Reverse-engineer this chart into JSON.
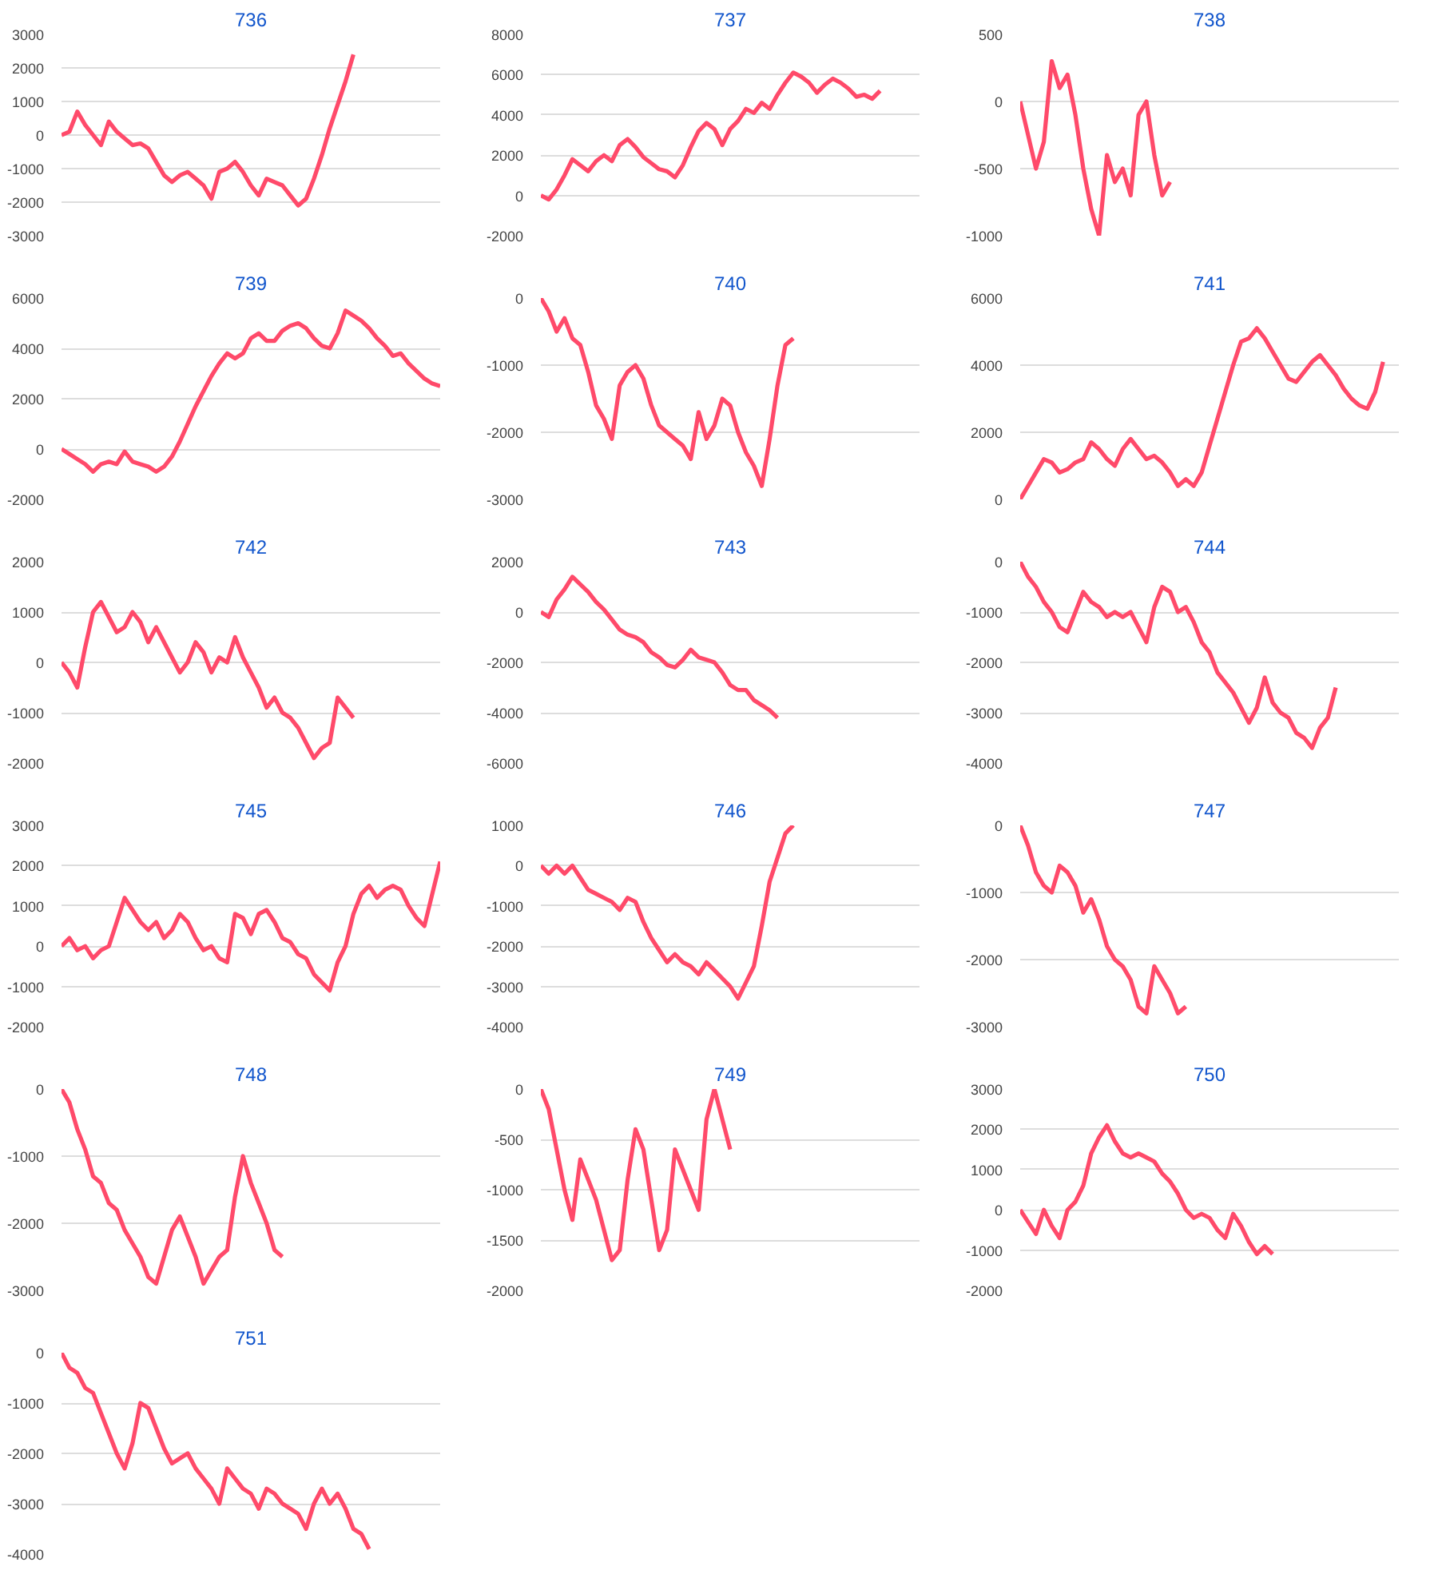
{
  "chart_data": [
    {
      "type": "line",
      "title": "736",
      "categories": [
        null,
        null,
        null,
        null,
        null,
        null,
        null,
        null,
        null,
        null,
        null,
        null,
        null,
        null,
        null,
        null,
        null,
        null,
        null,
        null,
        null,
        null,
        null,
        null,
        null,
        null,
        null,
        null,
        null,
        null,
        null,
        null,
        null,
        null,
        null,
        null,
        null,
        null,
        null,
        null,
        null,
        null,
        null,
        null,
        null,
        null,
        null,
        null,
        null
      ],
      "series": [
        {
          "color": "#ff4a6a",
          "values": [
            0,
            100,
            700,
            300,
            0,
            -300,
            400,
            100,
            -100,
            -300,
            -250,
            -400,
            -800,
            -1200,
            -1400,
            -1200,
            -1100,
            -1300,
            -1500,
            -1900,
            -1100,
            -1000,
            -800,
            -1100,
            -1500,
            -1800,
            -1300,
            -1400,
            -1500,
            -1800,
            -2100,
            -1900,
            -1300,
            -600,
            200,
            900,
            1600,
            2400,
            null,
            null,
            null,
            null,
            null,
            null,
            null,
            null,
            null,
            null,
            null
          ]
        }
      ],
      "ylim": [
        -3000,
        3000
      ],
      "yticks": [
        -3000,
        -2000,
        -1000,
        0,
        1000,
        2000,
        3000
      ],
      "grid": "y",
      "tick_labels": "y",
      "marker": "none",
      "line_style": "solid"
    },
    {
      "type": "line",
      "title": "737",
      "categories": [
        null,
        null,
        null,
        null,
        null,
        null,
        null,
        null,
        null,
        null,
        null,
        null,
        null,
        null,
        null,
        null,
        null,
        null,
        null,
        null,
        null,
        null,
        null,
        null,
        null,
        null,
        null,
        null,
        null,
        null,
        null,
        null,
        null,
        null,
        null,
        null,
        null,
        null,
        null,
        null,
        null,
        null,
        null,
        null,
        null,
        null,
        null,
        null,
        null
      ],
      "series": [
        {
          "color": "#ff4a6a",
          "values": [
            0,
            -200,
            300,
            1000,
            1800,
            1500,
            1200,
            1700,
            2000,
            1700,
            2500,
            2800,
            2400,
            1900,
            1600,
            1300,
            1200,
            900,
            1500,
            2400,
            3200,
            3600,
            3300,
            2500,
            3300,
            3700,
            4300,
            4100,
            4600,
            4300,
            5000,
            5600,
            6100,
            5900,
            5600,
            5100,
            5500,
            5800,
            5600,
            5300,
            4900,
            5000,
            4800,
            5200,
            null,
            null,
            null,
            null,
            null
          ]
        }
      ],
      "ylim": [
        -2000,
        8000
      ],
      "yticks": [
        -2000,
        0,
        2000,
        4000,
        6000,
        8000
      ],
      "grid": "y",
      "tick_labels": "y",
      "marker": "none",
      "line_style": "solid"
    },
    {
      "type": "line",
      "title": "738",
      "categories": [
        null,
        null,
        null,
        null,
        null,
        null,
        null,
        null,
        null,
        null,
        null,
        null,
        null,
        null,
        null,
        null,
        null,
        null,
        null,
        null,
        null,
        null,
        null,
        null,
        null,
        null,
        null,
        null,
        null,
        null,
        null,
        null,
        null,
        null,
        null,
        null,
        null,
        null,
        null,
        null,
        null,
        null,
        null,
        null,
        null,
        null,
        null,
        null,
        null
      ],
      "series": [
        {
          "color": "#ff4a6a",
          "values": [
            0,
            -250,
            -500,
            -300,
            300,
            100,
            200,
            -100,
            -500,
            -800,
            -1000,
            -400,
            -600,
            -500,
            -700,
            -100,
            0,
            -400,
            -700,
            -600,
            null,
            null,
            null,
            null,
            null,
            null,
            null,
            null,
            null,
            null,
            null,
            null,
            null,
            null,
            null,
            null,
            null,
            null,
            null,
            null,
            null,
            null,
            null,
            null,
            null,
            null,
            null,
            null,
            null
          ]
        }
      ],
      "ylim": [
        -1000,
        500
      ],
      "yticks": [
        -1000,
        -500,
        0,
        500
      ],
      "grid": "y",
      "tick_labels": "y",
      "marker": "none",
      "line_style": "solid"
    },
    {
      "type": "line",
      "title": "739",
      "categories": [
        null,
        null,
        null,
        null,
        null,
        null,
        null,
        null,
        null,
        null,
        null,
        null,
        null,
        null,
        null,
        null,
        null,
        null,
        null,
        null,
        null,
        null,
        null,
        null,
        null,
        null,
        null,
        null,
        null,
        null,
        null,
        null,
        null,
        null,
        null,
        null,
        null,
        null,
        null,
        null,
        null,
        null,
        null,
        null,
        null,
        null,
        null,
        null,
        null
      ],
      "series": [
        {
          "color": "#ff4a6a",
          "values": [
            0,
            -200,
            -400,
            -600,
            -900,
            -600,
            -500,
            -600,
            -100,
            -500,
            -600,
            -700,
            -900,
            -700,
            -300,
            300,
            1000,
            1700,
            2300,
            2900,
            3400,
            3800,
            3600,
            3800,
            4400,
            4600,
            4300,
            4300,
            4700,
            4900,
            5000,
            4800,
            4400,
            4100,
            4000,
            4600,
            5500,
            5300,
            5100,
            4800,
            4400,
            4100,
            3700,
            3800,
            3400,
            3100,
            2800,
            2600,
            2500
          ]
        }
      ],
      "ylim": [
        -2000,
        6000
      ],
      "yticks": [
        -2000,
        0,
        2000,
        4000,
        6000
      ],
      "grid": "y",
      "tick_labels": "y",
      "marker": "none",
      "line_style": "solid"
    },
    {
      "type": "line",
      "title": "740",
      "categories": [
        null,
        null,
        null,
        null,
        null,
        null,
        null,
        null,
        null,
        null,
        null,
        null,
        null,
        null,
        null,
        null,
        null,
        null,
        null,
        null,
        null,
        null,
        null,
        null,
        null,
        null,
        null,
        null,
        null,
        null,
        null,
        null,
        null,
        null,
        null,
        null,
        null,
        null,
        null,
        null,
        null,
        null,
        null,
        null,
        null,
        null,
        null,
        null,
        null
      ],
      "series": [
        {
          "color": "#ff4a6a",
          "values": [
            0,
            -200,
            -500,
            -300,
            -600,
            -700,
            -1100,
            -1600,
            -1800,
            -2100,
            -1300,
            -1100,
            -1000,
            -1200,
            -1600,
            -1900,
            -2000,
            -2100,
            -2200,
            -2400,
            -1700,
            -2100,
            -1900,
            -1500,
            -1600,
            -2000,
            -2300,
            -2500,
            -2800,
            -2100,
            -1300,
            -700,
            -600,
            null,
            null,
            null,
            null,
            null,
            null,
            null,
            null,
            null,
            null,
            null,
            null,
            null,
            null,
            null,
            null
          ]
        }
      ],
      "ylim": [
        -3000,
        0
      ],
      "yticks": [
        -3000,
        -2000,
        -1000,
        0
      ],
      "grid": "y",
      "tick_labels": "y",
      "marker": "none",
      "line_style": "solid"
    },
    {
      "type": "line",
      "title": "741",
      "categories": [
        null,
        null,
        null,
        null,
        null,
        null,
        null,
        null,
        null,
        null,
        null,
        null,
        null,
        null,
        null,
        null,
        null,
        null,
        null,
        null,
        null,
        null,
        null,
        null,
        null,
        null,
        null,
        null,
        null,
        null,
        null,
        null,
        null,
        null,
        null,
        null,
        null,
        null,
        null,
        null,
        null,
        null,
        null,
        null,
        null,
        null,
        null,
        null,
        null
      ],
      "series": [
        {
          "color": "#ff4a6a",
          "values": [
            0,
            400,
            800,
            1200,
            1100,
            800,
            900,
            1100,
            1200,
            1700,
            1500,
            1200,
            1000,
            1500,
            1800,
            1500,
            1200,
            1300,
            1100,
            800,
            400,
            600,
            400,
            800,
            1600,
            2400,
            3200,
            4000,
            4700,
            4800,
            5100,
            4800,
            4400,
            4000,
            3600,
            3500,
            3800,
            4100,
            4300,
            4000,
            3700,
            3300,
            3000,
            2800,
            2700,
            3200,
            4100,
            null,
            null
          ]
        }
      ],
      "ylim": [
        0,
        6000
      ],
      "yticks": [
        0,
        2000,
        4000,
        6000
      ],
      "grid": "y",
      "tick_labels": "y",
      "marker": "none",
      "line_style": "solid"
    },
    {
      "type": "line",
      "title": "742",
      "categories": [
        null,
        null,
        null,
        null,
        null,
        null,
        null,
        null,
        null,
        null,
        null,
        null,
        null,
        null,
        null,
        null,
        null,
        null,
        null,
        null,
        null,
        null,
        null,
        null,
        null,
        null,
        null,
        null,
        null,
        null,
        null,
        null,
        null,
        null,
        null,
        null,
        null,
        null,
        null,
        null,
        null,
        null,
        null,
        null,
        null,
        null,
        null,
        null,
        null
      ],
      "series": [
        {
          "color": "#ff4a6a",
          "values": [
            0,
            -200,
            -500,
            300,
            1000,
            1200,
            900,
            600,
            700,
            1000,
            800,
            400,
            700,
            400,
            100,
            -200,
            0,
            400,
            200,
            -200,
            100,
            0,
            500,
            100,
            -200,
            -500,
            -900,
            -700,
            -1000,
            -1100,
            -1300,
            -1600,
            -1900,
            -1700,
            -1600,
            -700,
            -900,
            -1100,
            null,
            null,
            null,
            null,
            null,
            null,
            null,
            null,
            null,
            null,
            null
          ]
        }
      ],
      "ylim": [
        -2000,
        2000
      ],
      "yticks": [
        -2000,
        -1000,
        0,
        1000,
        2000
      ],
      "grid": "y",
      "tick_labels": "y",
      "marker": "none",
      "line_style": "solid"
    },
    {
      "type": "line",
      "title": "743",
      "categories": [
        null,
        null,
        null,
        null,
        null,
        null,
        null,
        null,
        null,
        null,
        null,
        null,
        null,
        null,
        null,
        null,
        null,
        null,
        null,
        null,
        null,
        null,
        null,
        null,
        null,
        null,
        null,
        null,
        null,
        null,
        null,
        null,
        null,
        null,
        null,
        null,
        null,
        null,
        null,
        null,
        null,
        null,
        null,
        null,
        null,
        null,
        null,
        null,
        null
      ],
      "series": [
        {
          "color": "#ff4a6a",
          "values": [
            0,
            -200,
            500,
            900,
            1400,
            1100,
            800,
            400,
            100,
            -300,
            -700,
            -900,
            -1000,
            -1200,
            -1600,
            -1800,
            -2100,
            -2200,
            -1900,
            -1500,
            -1800,
            -1900,
            -2000,
            -2400,
            -2900,
            -3100,
            -3100,
            -3500,
            -3700,
            -3900,
            -4200,
            null,
            null,
            null,
            null,
            null,
            null,
            null,
            null,
            null,
            null,
            null,
            null,
            null,
            null,
            null,
            null,
            null,
            null
          ]
        }
      ],
      "ylim": [
        -6000,
        2000
      ],
      "yticks": [
        -6000,
        -4000,
        -2000,
        0,
        2000
      ],
      "grid": "y",
      "tick_labels": "y",
      "marker": "none",
      "line_style": "solid"
    },
    {
      "type": "line",
      "title": "744",
      "categories": [
        null,
        null,
        null,
        null,
        null,
        null,
        null,
        null,
        null,
        null,
        null,
        null,
        null,
        null,
        null,
        null,
        null,
        null,
        null,
        null,
        null,
        null,
        null,
        null,
        null,
        null,
        null,
        null,
        null,
        null,
        null,
        null,
        null,
        null,
        null,
        null,
        null,
        null,
        null,
        null,
        null,
        null,
        null,
        null,
        null,
        null,
        null,
        null,
        null
      ],
      "series": [
        {
          "color": "#ff4a6a",
          "values": [
            0,
            -300,
            -500,
            -800,
            -1000,
            -1300,
            -1400,
            -1000,
            -600,
            -800,
            -900,
            -1100,
            -1000,
            -1100,
            -1000,
            -1300,
            -1600,
            -900,
            -500,
            -600,
            -1000,
            -900,
            -1200,
            -1600,
            -1800,
            -2200,
            -2400,
            -2600,
            -2900,
            -3200,
            -2900,
            -2300,
            -2800,
            -3000,
            -3100,
            -3400,
            -3500,
            -3700,
            -3300,
            -3100,
            -2500,
            null,
            null,
            null,
            null,
            null,
            null,
            null,
            null
          ]
        }
      ],
      "ylim": [
        -4000,
        0
      ],
      "yticks": [
        -4000,
        -3000,
        -2000,
        -1000,
        0
      ],
      "grid": "y",
      "tick_labels": "y",
      "marker": "none",
      "line_style": "solid"
    },
    {
      "type": "line",
      "title": "745",
      "categories": [
        null,
        null,
        null,
        null,
        null,
        null,
        null,
        null,
        null,
        null,
        null,
        null,
        null,
        null,
        null,
        null,
        null,
        null,
        null,
        null,
        null,
        null,
        null,
        null,
        null,
        null,
        null,
        null,
        null,
        null,
        null,
        null,
        null,
        null,
        null,
        null,
        null,
        null,
        null,
        null,
        null,
        null,
        null,
        null,
        null,
        null,
        null,
        null,
        null
      ],
      "series": [
        {
          "color": "#ff4a6a",
          "values": [
            0,
            200,
            -100,
            0,
            -300,
            -100,
            0,
            600,
            1200,
            900,
            600,
            400,
            600,
            200,
            400,
            800,
            600,
            200,
            -100,
            0,
            -300,
            -400,
            800,
            700,
            300,
            800,
            900,
            600,
            200,
            100,
            -200,
            -300,
            -700,
            -900,
            -1100,
            -400,
            0,
            800,
            1300,
            1500,
            1200,
            1400,
            1500,
            1400,
            1000,
            700,
            500,
            1300,
            2100
          ]
        }
      ],
      "ylim": [
        -2000,
        3000
      ],
      "yticks": [
        -2000,
        -1000,
        0,
        1000,
        2000,
        3000
      ],
      "grid": "y",
      "tick_labels": "y",
      "marker": "none",
      "line_style": "solid"
    },
    {
      "type": "line",
      "title": "746",
      "categories": [
        null,
        null,
        null,
        null,
        null,
        null,
        null,
        null,
        null,
        null,
        null,
        null,
        null,
        null,
        null,
        null,
        null,
        null,
        null,
        null,
        null,
        null,
        null,
        null,
        null,
        null,
        null,
        null,
        null,
        null,
        null,
        null,
        null,
        null,
        null,
        null,
        null,
        null,
        null,
        null,
        null,
        null,
        null,
        null,
        null,
        null,
        null,
        null,
        null
      ],
      "series": [
        {
          "color": "#ff4a6a",
          "values": [
            0,
            -200,
            0,
            -200,
            0,
            -300,
            -600,
            -700,
            -800,
            -900,
            -1100,
            -800,
            -900,
            -1400,
            -1800,
            -2100,
            -2400,
            -2200,
            -2400,
            -2500,
            -2700,
            -2400,
            -2600,
            -2800,
            -3000,
            -3300,
            -2900,
            -2500,
            -1500,
            -400,
            200,
            800,
            1000,
            null,
            null,
            null,
            null,
            null,
            null,
            null,
            null,
            null,
            null,
            null,
            null,
            null,
            null,
            null,
            null
          ]
        }
      ],
      "ylim": [
        -4000,
        1000
      ],
      "yticks": [
        -4000,
        -3000,
        -2000,
        -1000,
        0,
        1000
      ],
      "grid": "y",
      "tick_labels": "y",
      "marker": "none",
      "line_style": "solid"
    },
    {
      "type": "line",
      "title": "747",
      "categories": [
        null,
        null,
        null,
        null,
        null,
        null,
        null,
        null,
        null,
        null,
        null,
        null,
        null,
        null,
        null,
        null,
        null,
        null,
        null,
        null,
        null,
        null,
        null,
        null,
        null,
        null,
        null,
        null,
        null,
        null,
        null,
        null,
        null,
        null,
        null,
        null,
        null,
        null,
        null,
        null,
        null,
        null,
        null,
        null,
        null,
        null,
        null,
        null,
        null
      ],
      "series": [
        {
          "color": "#ff4a6a",
          "values": [
            0,
            -300,
            -700,
            -900,
            -1000,
            -600,
            -700,
            -900,
            -1300,
            -1100,
            -1400,
            -1800,
            -2000,
            -2100,
            -2300,
            -2700,
            -2800,
            -2100,
            -2300,
            -2500,
            -2800,
            -2700,
            null,
            null,
            null,
            null,
            null,
            null,
            null,
            null,
            null,
            null,
            null,
            null,
            null,
            null,
            null,
            null,
            null,
            null,
            null,
            null,
            null,
            null,
            null,
            null,
            null,
            null,
            null
          ]
        }
      ],
      "ylim": [
        -3000,
        0
      ],
      "yticks": [
        -3000,
        -2000,
        -1000,
        0
      ],
      "grid": "y",
      "tick_labels": "y",
      "marker": "none",
      "line_style": "solid"
    },
    {
      "type": "line",
      "title": "748",
      "categories": [
        null,
        null,
        null,
        null,
        null,
        null,
        null,
        null,
        null,
        null,
        null,
        null,
        null,
        null,
        null,
        null,
        null,
        null,
        null,
        null,
        null,
        null,
        null,
        null,
        null,
        null,
        null,
        null,
        null,
        null,
        null,
        null,
        null,
        null,
        null,
        null,
        null,
        null,
        null,
        null,
        null,
        null,
        null,
        null,
        null,
        null,
        null,
        null,
        null
      ],
      "series": [
        {
          "color": "#ff4a6a",
          "values": [
            0,
            -200,
            -600,
            -900,
            -1300,
            -1400,
            -1700,
            -1800,
            -2100,
            -2300,
            -2500,
            -2800,
            -2900,
            -2500,
            -2100,
            -1900,
            -2200,
            -2500,
            -2900,
            -2700,
            -2500,
            -2400,
            -1600,
            -1000,
            -1400,
            -1700,
            -2000,
            -2400,
            -2500,
            null,
            null,
            null,
            null,
            null,
            null,
            null,
            null,
            null,
            null,
            null,
            null,
            null,
            null,
            null,
            null,
            null,
            null,
            null,
            null
          ]
        }
      ],
      "ylim": [
        -3000,
        0
      ],
      "yticks": [
        -3000,
        -2000,
        -1000,
        0
      ],
      "grid": "y",
      "tick_labels": "y",
      "marker": "none",
      "line_style": "solid"
    },
    {
      "type": "line",
      "title": "749",
      "categories": [
        null,
        null,
        null,
        null,
        null,
        null,
        null,
        null,
        null,
        null,
        null,
        null,
        null,
        null,
        null,
        null,
        null,
        null,
        null,
        null,
        null,
        null,
        null,
        null,
        null,
        null,
        null,
        null,
        null,
        null,
        null,
        null,
        null,
        null,
        null,
        null,
        null,
        null,
        null,
        null,
        null,
        null,
        null,
        null,
        null,
        null,
        null,
        null,
        null
      ],
      "series": [
        {
          "color": "#ff4a6a",
          "values": [
            0,
            -200,
            -600,
            -1000,
            -1300,
            -700,
            -900,
            -1100,
            -1400,
            -1700,
            -1600,
            -900,
            -400,
            -600,
            -1100,
            -1600,
            -1400,
            -600,
            -800,
            -1000,
            -1200,
            -300,
            0,
            -300,
            -600,
            null,
            null,
            null,
            null,
            null,
            null,
            null,
            null,
            null,
            null,
            null,
            null,
            null,
            null,
            null,
            null,
            null,
            null,
            null,
            null,
            null,
            null,
            null,
            null
          ]
        }
      ],
      "ylim": [
        -2000,
        0
      ],
      "yticks": [
        -2000,
        -1500,
        -1000,
        -500,
        0
      ],
      "grid": "y",
      "tick_labels": "y",
      "marker": "none",
      "line_style": "solid"
    },
    {
      "type": "line",
      "title": "750",
      "categories": [
        null,
        null,
        null,
        null,
        null,
        null,
        null,
        null,
        null,
        null,
        null,
        null,
        null,
        null,
        null,
        null,
        null,
        null,
        null,
        null,
        null,
        null,
        null,
        null,
        null,
        null,
        null,
        null,
        null,
        null,
        null,
        null,
        null,
        null,
        null,
        null,
        null,
        null,
        null,
        null,
        null,
        null,
        null,
        null,
        null,
        null,
        null,
        null,
        null
      ],
      "series": [
        {
          "color": "#ff4a6a",
          "values": [
            0,
            -300,
            -600,
            0,
            -400,
            -700,
            0,
            200,
            600,
            1400,
            1800,
            2100,
            1700,
            1400,
            1300,
            1400,
            1300,
            1200,
            900,
            700,
            400,
            0,
            -200,
            -100,
            -200,
            -500,
            -700,
            -100,
            -400,
            -800,
            -1100,
            -900,
            -1100,
            null,
            null,
            null,
            null,
            null,
            null,
            null,
            null,
            null,
            null,
            null,
            null,
            null,
            null,
            null,
            null
          ]
        }
      ],
      "ylim": [
        -2000,
        3000
      ],
      "yticks": [
        -2000,
        -1000,
        0,
        1000,
        2000,
        3000
      ],
      "grid": "y",
      "tick_labels": "y",
      "marker": "none",
      "line_style": "solid"
    },
    {
      "type": "line",
      "title": "751",
      "categories": [
        null,
        null,
        null,
        null,
        null,
        null,
        null,
        null,
        null,
        null,
        null,
        null,
        null,
        null,
        null,
        null,
        null,
        null,
        null,
        null,
        null,
        null,
        null,
        null,
        null,
        null,
        null,
        null,
        null,
        null,
        null,
        null,
        null,
        null,
        null,
        null,
        null,
        null,
        null,
        null,
        null,
        null,
        null,
        null,
        null,
        null,
        null,
        null,
        null
      ],
      "series": [
        {
          "color": "#ff4a6a",
          "values": [
            0,
            -300,
            -400,
            -700,
            -800,
            -1200,
            -1600,
            -2000,
            -2300,
            -1800,
            -1000,
            -1100,
            -1500,
            -1900,
            -2200,
            -2100,
            -2000,
            -2300,
            -2500,
            -2700,
            -3000,
            -2300,
            -2500,
            -2700,
            -2800,
            -3100,
            -2700,
            -2800,
            -3000,
            -3100,
            -3200,
            -3500,
            -3000,
            -2700,
            -3000,
            -2800,
            -3100,
            -3500,
            -3600,
            -3900,
            null,
            null,
            null,
            null,
            null,
            null,
            null,
            null,
            null
          ]
        }
      ],
      "ylim": [
        -4000,
        0
      ],
      "yticks": [
        -4000,
        -3000,
        -2000,
        -1000,
        0
      ],
      "grid": "y",
      "tick_labels": "y",
      "marker": "none",
      "line_style": "solid"
    }
  ]
}
